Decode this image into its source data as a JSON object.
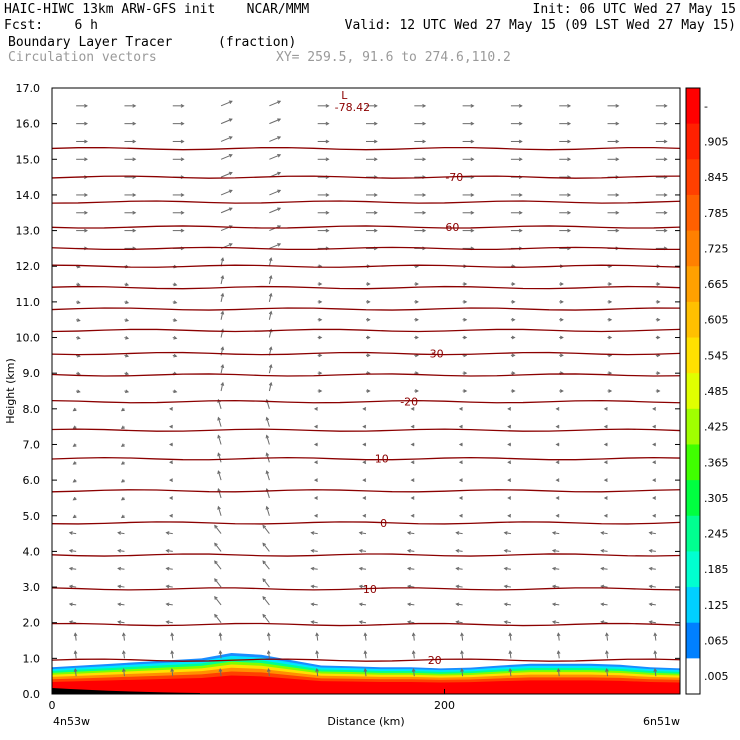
{
  "header": {
    "line1_left": "HAIC-HIWC 13km ARW-GFS init    NCAR/MMM",
    "line1_right": "Init: 06 UTC Wed 27 May 15",
    "line2_left": "Fcst:    6 h",
    "line2_right": "Valid: 12 UTC Wed 27 May 15 (09 LST Wed 27 May 15)",
    "line3_left": "Boundary Layer Tracer",
    "line3_mid": "(fraction)",
    "line4_left": "Circulation vectors",
    "line4_mid": "XY= 259.5, 91.6 to 274.6,110.2"
  },
  "chart_data": {
    "type": "heatmap",
    "ylabel": "Height (km)",
    "xlabel": "Distance (km)",
    "ylim": [
      0,
      17
    ],
    "xlim": [
      0,
      320
    ],
    "y_ticks": [
      "0.0",
      "1.0",
      "2.0",
      "3.0",
      "4.0",
      "5.0",
      "6.0",
      "7.0",
      "8.0",
      "9.0",
      "10.0",
      "11.0",
      "12.0",
      "13.0",
      "14.0",
      "15.0",
      "16.0",
      "17.0"
    ],
    "x_ticks": [
      {
        "value": 0,
        "label": "0"
      },
      {
        "value": 200,
        "label": "200"
      }
    ],
    "x_endpoint_labels": {
      "left": "4n53w",
      "right": "6n51w"
    },
    "colorbar_labels": [
      "-",
      ".905",
      ".845",
      ".785",
      ".725",
      ".665",
      ".605",
      ".545",
      ".485",
      ".425",
      ".365",
      ".305",
      ".245",
      ".185",
      ".125",
      ".065",
      ".005"
    ],
    "colorbar_colors": [
      "#ff0000",
      "#ff2000",
      "#ff4000",
      "#ff6000",
      "#ff8000",
      "#ffa000",
      "#ffc000",
      "#ffe000",
      "#e0ff00",
      "#a0ff00",
      "#40ff00",
      "#00ff40",
      "#00ff90",
      "#00ffd0",
      "#00d0ff",
      "#0080ff",
      "#ffffff"
    ],
    "temperature_contours": [
      {
        "label": "20",
        "y": 0.95,
        "x": 195
      },
      {
        "label": "10",
        "y": 2.95,
        "x": 162
      },
      {
        "label": "0",
        "y": 4.8,
        "x": 169
      },
      {
        "label": "-10",
        "y": 6.6,
        "x": 167
      },
      {
        "label": "-20",
        "y": 8.2,
        "x": 182
      },
      {
        "label": "-30",
        "y": 9.55,
        "x": 195
      },
      {
        "label": "-60",
        "y": 13.1,
        "x": 203
      },
      {
        "label": "-70",
        "y": 14.5,
        "x": 205
      }
    ],
    "contour_levels_km": [
      0.95,
      1.95,
      2.95,
      3.9,
      4.8,
      5.7,
      6.6,
      7.4,
      8.2,
      8.95,
      9.55,
      10.2,
      10.8,
      11.4,
      12.0,
      12.5,
      13.1,
      13.8,
      14.5,
      15.3
    ],
    "min_marker": {
      "symbol": "L",
      "value": "-78.42",
      "x": 150,
      "y": 16.8
    },
    "tracer_top_km": [
      0.75,
      0.8,
      0.85,
      0.9,
      0.95,
      1.0,
      1.15,
      1.1,
      0.95,
      0.8,
      0.78,
      0.75,
      0.75,
      0.72,
      0.74,
      0.8,
      0.85,
      0.85,
      0.85,
      0.82,
      0.75,
      0.72
    ]
  }
}
